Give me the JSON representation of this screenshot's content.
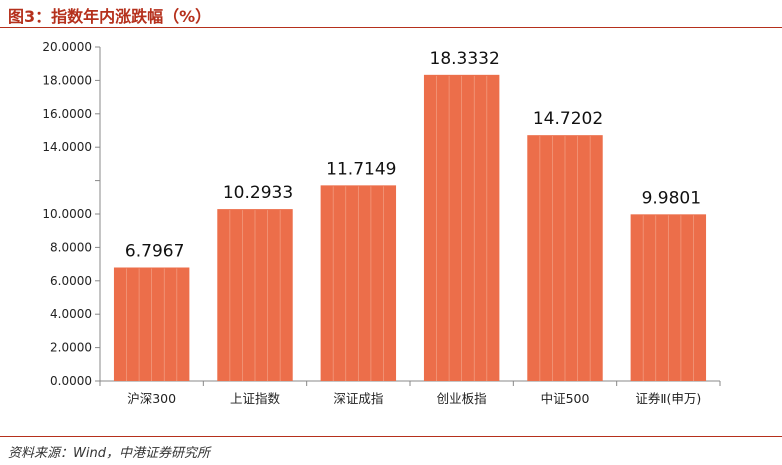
{
  "figure": {
    "title": "图3：指数年内涨跌幅（%）",
    "source": "资料来源：Wind，中港证券研究所"
  },
  "colors": {
    "bar": "#ec6e4a",
    "bar_stripe": "#f3a084",
    "title": "#b5301c",
    "axis": "#888888"
  },
  "chart_data": {
    "type": "bar",
    "title": "",
    "xlabel": "",
    "ylabel": "",
    "categories": [
      "沪深300",
      "上证指数",
      "深证成指",
      "创业板指",
      "中证500",
      "证券Ⅱ(申万)"
    ],
    "values": [
      6.7967,
      10.2933,
      11.7149,
      18.3332,
      14.7202,
      9.9801
    ],
    "value_labels": [
      "6.7967",
      "10.2933",
      "11.7149",
      "18.3332",
      "14.7202",
      "9.9801"
    ],
    "ylim": [
      0,
      20
    ],
    "y_ticks": [
      {
        "value": 0,
        "label": "0.0000"
      },
      {
        "value": 2,
        "label": "2.0000"
      },
      {
        "value": 4,
        "label": "4.0000"
      },
      {
        "value": 6,
        "label": "6.0000"
      },
      {
        "value": 8,
        "label": "8.0000"
      },
      {
        "value": 10,
        "label": "10.0000"
      },
      {
        "value": 12,
        "label": ""
      },
      {
        "value": 14,
        "label": "14.0000"
      },
      {
        "value": 16,
        "label": "16.0000"
      },
      {
        "value": 18,
        "label": "18.0000"
      },
      {
        "value": 20,
        "label": "20.0000"
      }
    ],
    "grid": false,
    "legend": "none"
  }
}
